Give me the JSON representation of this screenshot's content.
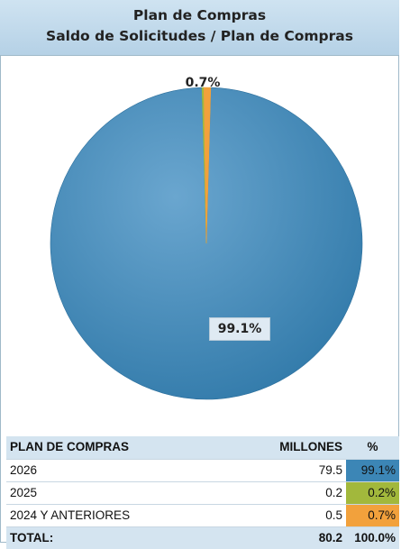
{
  "header": {
    "title": "Plan de Compras",
    "subtitle": "Saldo de Solicitudes / Plan de Compras"
  },
  "chart_data": {
    "type": "pie",
    "slices": [
      {
        "label": "2026",
        "value": 99.1,
        "color": "#3c86b6",
        "data_label": "99.1%"
      },
      {
        "label": "2025",
        "value": 0.2,
        "color": "#a2b83c",
        "data_label": ""
      },
      {
        "label": "2024 Y ANTERIORES",
        "value": 0.7,
        "color": "#f2a13c",
        "data_label": "0.7%"
      }
    ],
    "legend": "none"
  },
  "table": {
    "headers": {
      "name": "PLAN DE COMPRAS",
      "value": "MILLONES",
      "pct": "%"
    },
    "rows": [
      {
        "name": "2026",
        "value": "79.5",
        "pct": "99.1%",
        "color": "#3c86b6"
      },
      {
        "name": "2025",
        "value": "0.2",
        "pct": "0.2%",
        "color": "#a2b83c"
      },
      {
        "name": "2024 Y ANTERIORES",
        "value": "0.5",
        "pct": "0.7%",
        "color": "#f2a13c"
      }
    ],
    "total": {
      "name": "TOTAL:",
      "value": "80.2",
      "pct": "100.0%"
    }
  }
}
